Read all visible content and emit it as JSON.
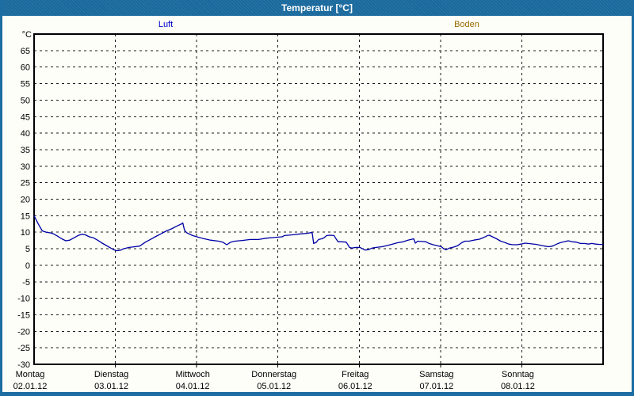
{
  "titlebar": {
    "title": "Temperatur [°C]"
  },
  "legend": {
    "items": [
      {
        "label": "Luft",
        "color": "#0000c8"
      },
      {
        "label": "Boden",
        "color": "#9a6a00"
      }
    ]
  },
  "chart_data": {
    "type": "line",
    "title": "Temperatur [°C]",
    "xlabel": "",
    "ylabel": "°C",
    "ylim": [
      -30,
      70
    ],
    "yticks": [
      65,
      60,
      55,
      50,
      45,
      40,
      35,
      30,
      25,
      20,
      15,
      10,
      5,
      0,
      -5,
      -10,
      -15,
      -20,
      -25,
      -30
    ],
    "grid": true,
    "legend_position": "top",
    "x_axis": {
      "days": [
        {
          "name": "Montag",
          "date": "02.01.12"
        },
        {
          "name": "Dienstag",
          "date": "03.01.12"
        },
        {
          "name": "Mittwoch",
          "date": "04.01.12"
        },
        {
          "name": "Donnerstag",
          "date": "05.01.12"
        },
        {
          "name": "Freitag",
          "date": "06.01.12"
        },
        {
          "name": "Samstag",
          "date": "07.01.12"
        },
        {
          "name": "Sonntag",
          "date": "08.01.12"
        }
      ]
    },
    "series": [
      {
        "name": "Luft",
        "color": "#0000a6",
        "x_unit": "days_from_monday_00h",
        "points": [
          [
            0.0,
            15.0
          ],
          [
            0.05,
            12.6
          ],
          [
            0.1,
            10.4
          ],
          [
            0.15,
            10.0
          ],
          [
            0.2,
            9.8
          ],
          [
            0.24,
            9.5
          ],
          [
            0.29,
            8.8
          ],
          [
            0.34,
            8.0
          ],
          [
            0.39,
            7.4
          ],
          [
            0.44,
            7.6
          ],
          [
            0.49,
            8.3
          ],
          [
            0.54,
            9.0
          ],
          [
            0.59,
            9.4
          ],
          [
            0.63,
            9.2
          ],
          [
            0.68,
            8.6
          ],
          [
            0.73,
            8.3
          ],
          [
            0.78,
            7.6
          ],
          [
            0.83,
            6.8
          ],
          [
            0.88,
            6.1
          ],
          [
            0.93,
            5.4
          ],
          [
            0.98,
            4.7
          ],
          [
            1.02,
            4.4
          ],
          [
            1.07,
            4.6
          ],
          [
            1.1,
            5.0
          ],
          [
            1.17,
            5.4
          ],
          [
            1.24,
            5.6
          ],
          [
            1.3,
            5.8
          ],
          [
            1.37,
            7.0
          ],
          [
            1.43,
            7.8
          ],
          [
            1.49,
            8.6
          ],
          [
            1.56,
            9.5
          ],
          [
            1.63,
            10.4
          ],
          [
            1.69,
            11.0
          ],
          [
            1.76,
            11.9
          ],
          [
            1.82,
            12.6
          ],
          [
            1.83,
            12.8
          ],
          [
            1.85,
            10.6
          ],
          [
            1.88,
            9.8
          ],
          [
            1.95,
            9.0
          ],
          [
            2.02,
            8.5
          ],
          [
            2.08,
            8.1
          ],
          [
            2.17,
            7.6
          ],
          [
            2.27,
            7.3
          ],
          [
            2.32,
            7.0
          ],
          [
            2.37,
            6.2
          ],
          [
            2.42,
            7.0
          ],
          [
            2.47,
            7.3
          ],
          [
            2.56,
            7.5
          ],
          [
            2.66,
            7.8
          ],
          [
            2.76,
            7.8
          ],
          [
            2.86,
            8.2
          ],
          [
            2.95,
            8.4
          ],
          [
            3.05,
            8.6
          ],
          [
            3.08,
            9.0
          ],
          [
            3.18,
            9.2
          ],
          [
            3.28,
            9.5
          ],
          [
            3.37,
            9.7
          ],
          [
            3.42,
            10.0
          ],
          [
            3.44,
            6.6
          ],
          [
            3.47,
            6.9
          ],
          [
            3.5,
            7.8
          ],
          [
            3.54,
            8.0
          ],
          [
            3.57,
            8.4
          ],
          [
            3.6,
            9.0
          ],
          [
            3.64,
            9.1
          ],
          [
            3.69,
            9.0
          ],
          [
            3.71,
            8.2
          ],
          [
            3.74,
            7.1
          ],
          [
            3.78,
            7.1
          ],
          [
            3.84,
            7.0
          ],
          [
            3.88,
            5.4
          ],
          [
            3.91,
            5.2
          ],
          [
            3.96,
            5.4
          ],
          [
            4.01,
            5.4
          ],
          [
            4.04,
            5.0
          ],
          [
            4.07,
            4.6
          ],
          [
            4.11,
            4.7
          ],
          [
            4.16,
            5.2
          ],
          [
            4.21,
            5.4
          ],
          [
            4.28,
            5.6
          ],
          [
            4.35,
            6.0
          ],
          [
            4.41,
            6.4
          ],
          [
            4.47,
            6.8
          ],
          [
            4.54,
            7.1
          ],
          [
            4.6,
            7.6
          ],
          [
            4.65,
            7.9
          ],
          [
            4.67,
            8.0
          ],
          [
            4.69,
            6.7
          ],
          [
            4.72,
            7.3
          ],
          [
            4.77,
            7.2
          ],
          [
            4.82,
            7.1
          ],
          [
            4.86,
            6.6
          ],
          [
            4.91,
            6.2
          ],
          [
            4.96,
            5.9
          ],
          [
            5.01,
            5.6
          ],
          [
            5.04,
            5.0
          ],
          [
            5.07,
            4.7
          ],
          [
            5.11,
            5.2
          ],
          [
            5.16,
            5.5
          ],
          [
            5.21,
            5.9
          ],
          [
            5.26,
            6.8
          ],
          [
            5.3,
            7.3
          ],
          [
            5.35,
            7.3
          ],
          [
            5.41,
            7.6
          ],
          [
            5.48,
            7.9
          ],
          [
            5.53,
            8.4
          ],
          [
            5.58,
            9.0
          ],
          [
            5.6,
            9.1
          ],
          [
            5.65,
            8.5
          ],
          [
            5.69,
            8.0
          ],
          [
            5.74,
            7.3
          ],
          [
            5.79,
            6.9
          ],
          [
            5.84,
            6.4
          ],
          [
            5.89,
            6.2
          ],
          [
            5.94,
            6.2
          ],
          [
            5.99,
            6.4
          ],
          [
            6.04,
            6.7
          ],
          [
            6.08,
            6.6
          ],
          [
            6.18,
            6.3
          ],
          [
            6.28,
            5.8
          ],
          [
            6.33,
            5.6
          ],
          [
            6.38,
            5.8
          ],
          [
            6.43,
            6.4
          ],
          [
            6.47,
            6.8
          ],
          [
            6.52,
            7.1
          ],
          [
            6.57,
            7.4
          ],
          [
            6.62,
            7.1
          ],
          [
            6.67,
            7.0
          ],
          [
            6.72,
            6.6
          ],
          [
            6.77,
            6.6
          ],
          [
            6.82,
            6.4
          ],
          [
            6.86,
            6.6
          ],
          [
            6.91,
            6.4
          ],
          [
            6.96,
            6.3
          ],
          [
            7.0,
            6.3
          ]
        ]
      },
      {
        "name": "Boden",
        "color": "#9a6a00",
        "x_unit": "days_from_monday_00h",
        "points": []
      }
    ]
  }
}
